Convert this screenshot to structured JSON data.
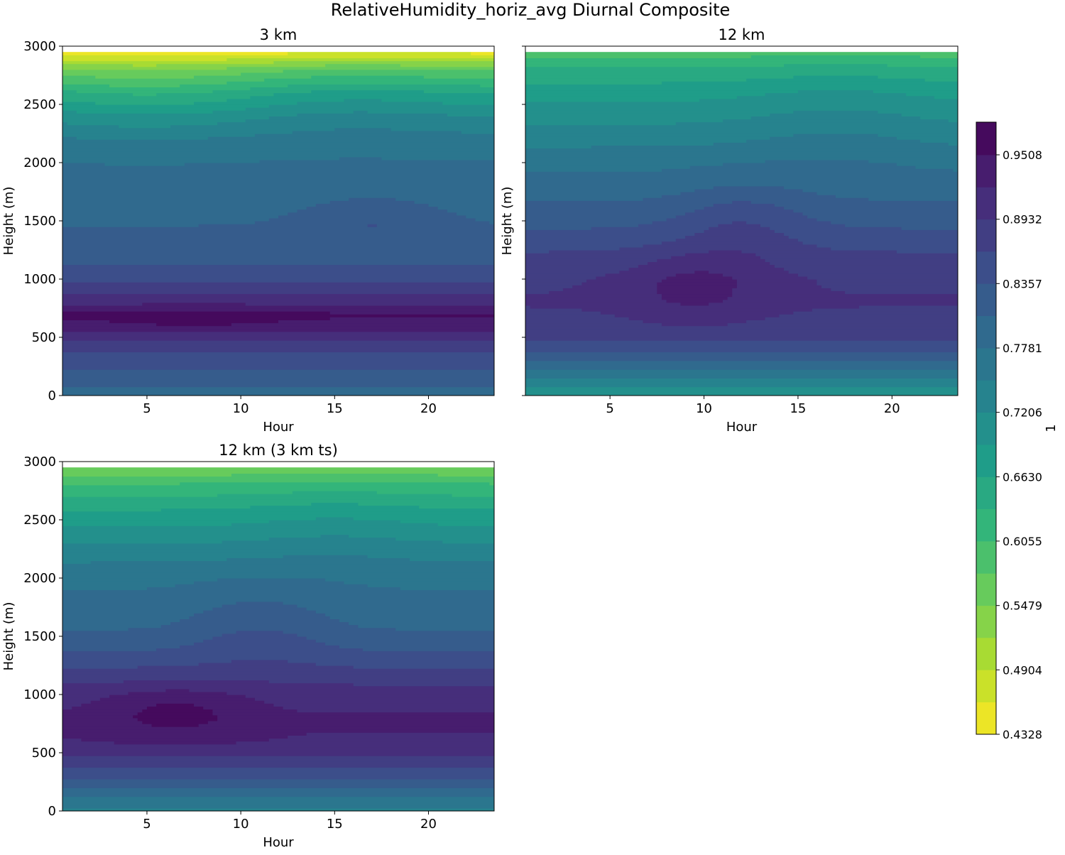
{
  "figure_title": "RelativeHumidity_horiz_avg Diurnal Composite",
  "chart_data": {
    "type": "contour",
    "suptitle": "RelativeHumidity_horiz_avg Diurnal Composite",
    "colorbar": {
      "label": "1",
      "ticks": [
        "0.4328",
        "0.4904",
        "0.5479",
        "0.6055",
        "0.6630",
        "0.7206",
        "0.7781",
        "0.8357",
        "0.8932",
        "0.9508"
      ],
      "range": [
        0.4328,
        0.98
      ],
      "levels": [
        0.4328,
        0.4616,
        0.4904,
        0.5192,
        0.5479,
        0.5767,
        0.6055,
        0.6343,
        0.663,
        0.6918,
        0.7206,
        0.7494,
        0.7781,
        0.8069,
        0.8357,
        0.8645,
        0.8932,
        0.922,
        0.9508,
        0.98
      ],
      "colormap": "viridis_r"
    },
    "panels": [
      {
        "id": "3km",
        "title": "3 km",
        "xlabel": "Hour",
        "ylabel": "Height (m)",
        "xlim": [
          0.5,
          23.5
        ],
        "ylim": [
          0,
          3000
        ],
        "xticks": [
          "5",
          "10",
          "15",
          "20"
        ],
        "yticks": [
          "0",
          "500",
          "1000",
          "1500",
          "2000",
          "2500",
          "3000"
        ],
        "data_top": 2950,
        "profile": [
          [
            0,
            0.8
          ],
          [
            100,
            0.81
          ],
          [
            200,
            0.83
          ],
          [
            300,
            0.85
          ],
          [
            400,
            0.87
          ],
          [
            500,
            0.9
          ],
          [
            600,
            0.94
          ],
          [
            700,
            0.955
          ],
          [
            800,
            0.91
          ],
          [
            900,
            0.885
          ],
          [
            1000,
            0.86
          ],
          [
            1100,
            0.84
          ],
          [
            1200,
            0.825
          ],
          [
            1400,
            0.81
          ],
          [
            1600,
            0.8
          ],
          [
            1800,
            0.79
          ],
          [
            2000,
            0.78
          ],
          [
            2200,
            0.76
          ],
          [
            2400,
            0.72
          ],
          [
            2600,
            0.66
          ],
          [
            2800,
            0.57
          ],
          [
            2950,
            0.45
          ]
        ],
        "features": [
          {
            "h": 680,
            "a": 0.012,
            "w": 180,
            "center": 7.5,
            "spread": 5
          },
          {
            "h": 1500,
            "a": 0.03,
            "w": 200,
            "center": 17,
            "spread": 3.5
          },
          {
            "h": 2600,
            "a": -0.03,
            "w": 400,
            "center": 5,
            "spread": 6
          },
          {
            "h": 2600,
            "a": 0.015,
            "w": 400,
            "center": 16,
            "spread": 5
          }
        ]
      },
      {
        "id": "12km",
        "title": "12 km",
        "xlabel": "Hour",
        "ylabel": "Height (m)",
        "xlim": [
          0.5,
          23.5
        ],
        "ylim": [
          0,
          3000
        ],
        "xticks": [
          "5",
          "10",
          "15",
          "20"
        ],
        "yticks": [],
        "data_top": 2950,
        "profile": [
          [
            0,
            0.7
          ],
          [
            100,
            0.73
          ],
          [
            200,
            0.77
          ],
          [
            300,
            0.81
          ],
          [
            400,
            0.84
          ],
          [
            500,
            0.87
          ],
          [
            600,
            0.885
          ],
          [
            800,
            0.895
          ],
          [
            1000,
            0.89
          ],
          [
            1200,
            0.87
          ],
          [
            1400,
            0.84
          ],
          [
            1600,
            0.815
          ],
          [
            1800,
            0.79
          ],
          [
            2000,
            0.77
          ],
          [
            2200,
            0.74
          ],
          [
            2400,
            0.71
          ],
          [
            2600,
            0.68
          ],
          [
            2800,
            0.64
          ],
          [
            2950,
            0.59
          ]
        ],
        "features": [
          {
            "h": 950,
            "a": 0.04,
            "w": 280,
            "center": 9.5,
            "spread": 3.6
          },
          {
            "h": 1500,
            "a": 0.035,
            "w": 350,
            "center": 12,
            "spread": 3.5
          },
          {
            "h": 2400,
            "a": 0.02,
            "w": 500,
            "center": 17,
            "spread": 5
          }
        ]
      },
      {
        "id": "12km_3kmts",
        "title": "12 km (3 km ts)",
        "xlabel": "Hour",
        "ylabel": "Height (m)",
        "xlim": [
          0.5,
          23.5
        ],
        "ylim": [
          0,
          3000
        ],
        "xticks": [
          "5",
          "10",
          "15",
          "20"
        ],
        "yticks": [
          "0",
          "500",
          "1000",
          "1500",
          "2000",
          "2500",
          "3000"
        ],
        "data_top": 2950,
        "profile": [
          [
            0,
            0.74
          ],
          [
            100,
            0.77
          ],
          [
            200,
            0.81
          ],
          [
            300,
            0.84
          ],
          [
            400,
            0.87
          ],
          [
            500,
            0.9
          ],
          [
            600,
            0.92
          ],
          [
            800,
            0.925
          ],
          [
            1000,
            0.91
          ],
          [
            1200,
            0.87
          ],
          [
            1400,
            0.83
          ],
          [
            1600,
            0.8
          ],
          [
            1800,
            0.785
          ],
          [
            2000,
            0.77
          ],
          [
            2200,
            0.74
          ],
          [
            2400,
            0.7
          ],
          [
            2600,
            0.66
          ],
          [
            2800,
            0.61
          ],
          [
            2950,
            0.55
          ]
        ],
        "features": [
          {
            "h": 850,
            "a": 0.04,
            "w": 220,
            "center": 6.5,
            "spread": 3.6
          },
          {
            "h": 1600,
            "a": 0.03,
            "w": 350,
            "center": 11,
            "spread": 4
          },
          {
            "h": 2500,
            "a": 0.015,
            "w": 400,
            "center": 15,
            "spread": 5
          }
        ]
      }
    ]
  }
}
